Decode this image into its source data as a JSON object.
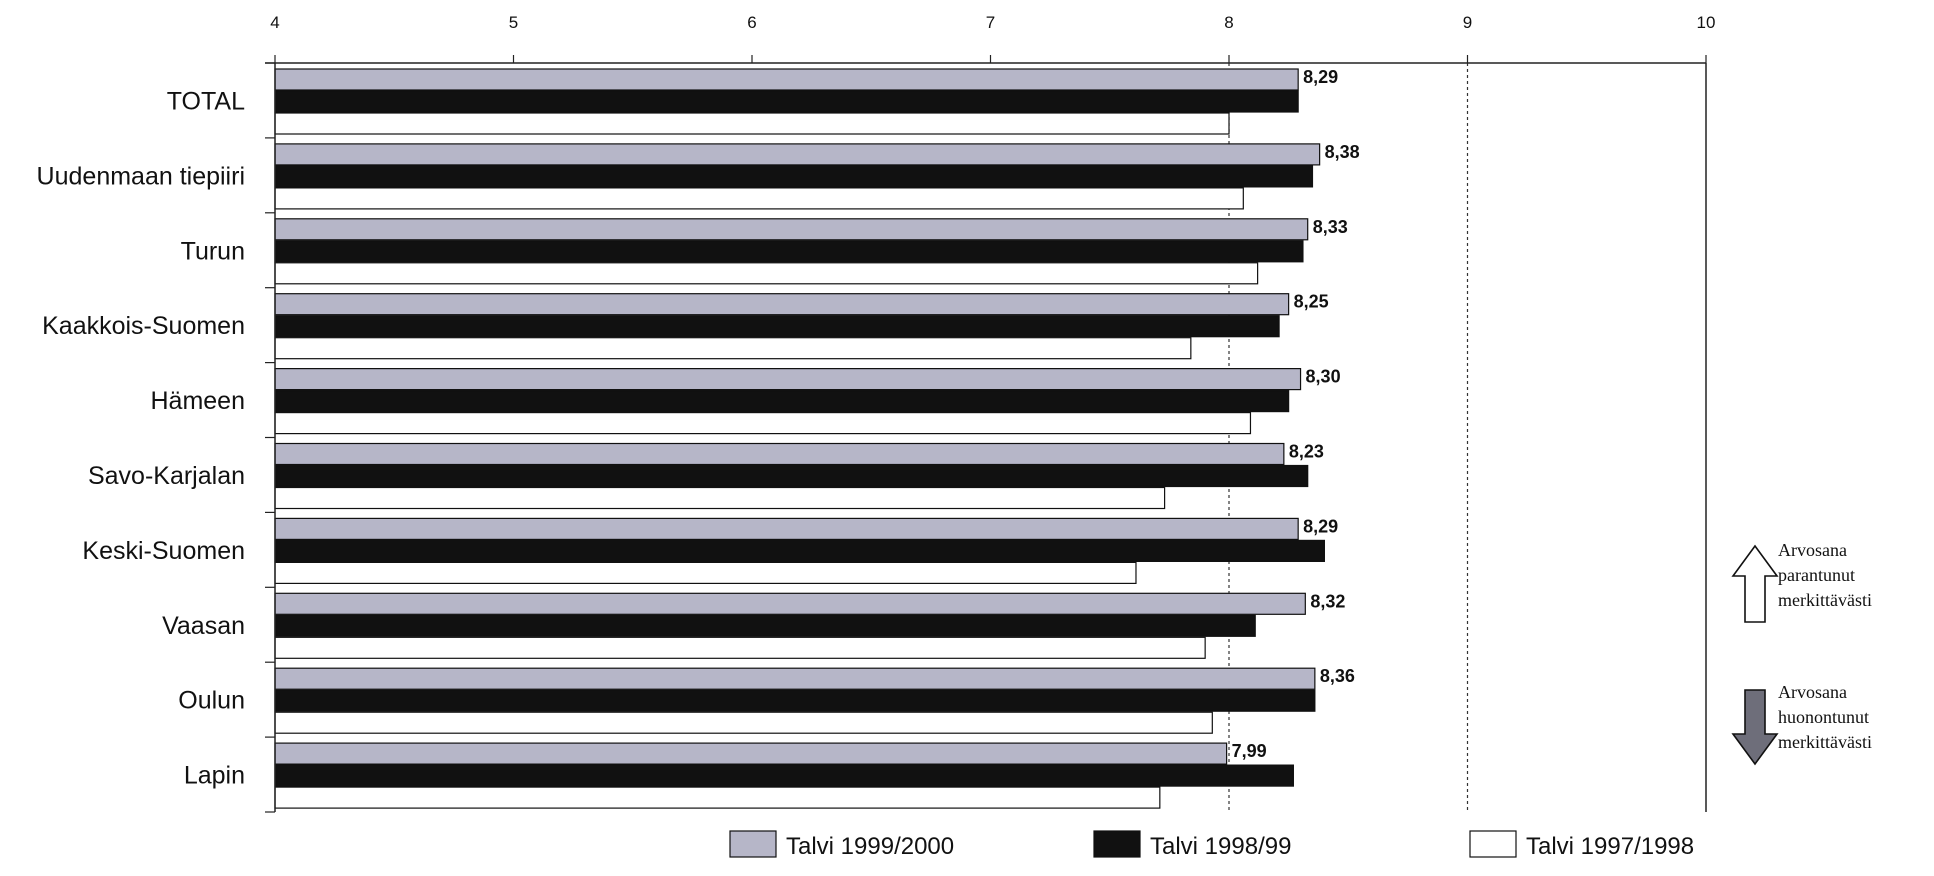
{
  "chart_data": {
    "type": "bar",
    "orientation": "horizontal",
    "title": "",
    "xlabel": "",
    "ylabel": "",
    "xlim": [
      4,
      10
    ],
    "x_ticks": [
      "4",
      "5",
      "6",
      "7",
      "8",
      "9",
      "10"
    ],
    "categories": [
      "TOTAL",
      "Uudenmaan tiepiiri",
      "Turun",
      "Kaakkois-Suomen",
      "Hämeen",
      "Savo-Karjalan",
      "Keski-Suomen",
      "Vaasan",
      "Oulun",
      "Lapin"
    ],
    "series": [
      {
        "name": "Talvi 1999/2000",
        "color": "#b6b6c8",
        "values": [
          8.29,
          8.38,
          8.33,
          8.25,
          8.3,
          8.23,
          8.29,
          8.32,
          8.36,
          7.99
        ]
      },
      {
        "name": "Talvi 1998/99",
        "color": "#111111",
        "values": [
          8.29,
          8.35,
          8.31,
          8.21,
          8.25,
          8.33,
          8.4,
          8.11,
          8.36,
          8.27
        ]
      },
      {
        "name": "Talvi 1997/1998",
        "color": "#ffffff",
        "values": [
          8.0,
          8.06,
          8.12,
          7.84,
          8.09,
          7.73,
          7.61,
          7.9,
          7.93,
          7.71
        ]
      }
    ],
    "data_labels": [
      "8,29",
      "8,38",
      "8,33",
      "8,25",
      "8,30",
      "8,23",
      "8,29",
      "8,32",
      "8,36",
      "7,99"
    ],
    "reference_lines": [
      8,
      9
    ],
    "legend_position": "bottom",
    "notes": [
      {
        "icon": "up-arrow-icon",
        "lines": [
          "Arvosana",
          "parantunut",
          "merkittävästi"
        ]
      },
      {
        "icon": "down-arrow-icon",
        "lines": [
          "Arvosana",
          "huonontunut",
          "merkittävästi"
        ]
      }
    ]
  }
}
